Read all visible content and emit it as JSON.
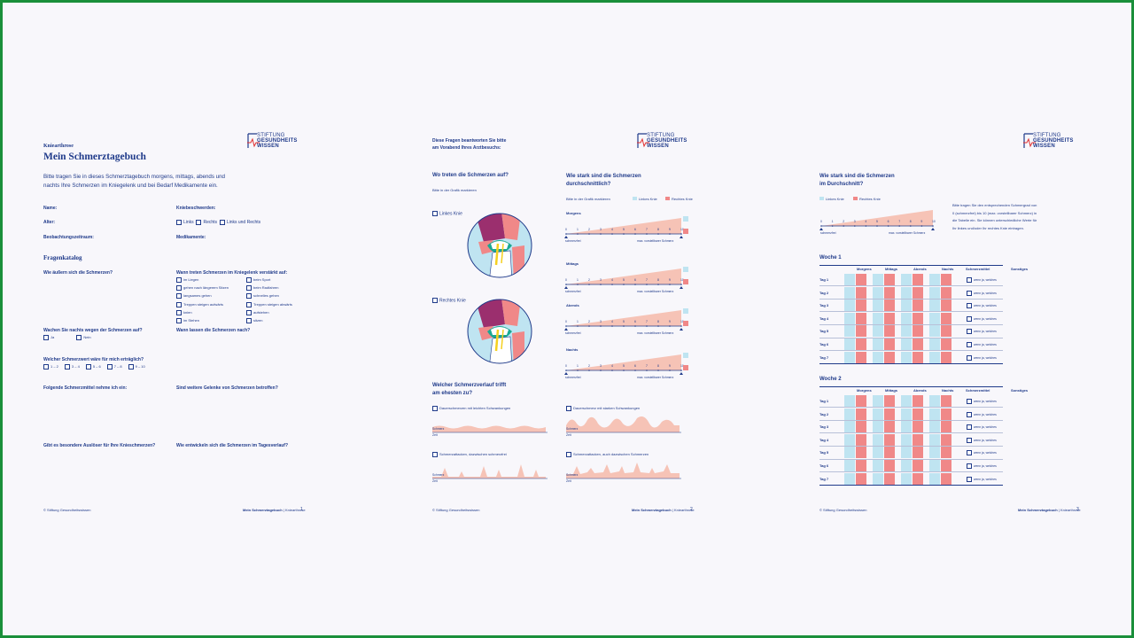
{
  "page1": {
    "subtitle": "Kniearthrose",
    "title": "Mein Schmerztagebuch",
    "intro1": "Bitte tragen Sie in dieses Schmerztagebuch morgens, mittags, abends und",
    "intro2": "nachts Ihre Schmerzen im Kniegelenk und bei Bedarf Medikamente ein.",
    "name_label": "Name:",
    "age_label": "Alter:",
    "period_label": "Beobachtungszeitraum:",
    "knee_complaints_label": "Kniebeschwerden:",
    "knee_options": [
      "Links",
      "Rechts",
      "Links und Rechts"
    ],
    "meds_label": "Medikamente:",
    "section_title": "Fragenkatalog",
    "q1": "Wie äußern sich die Schmerzen?",
    "q2": "Wann treten Schmerzen im Kniegelenk verstärkt auf:",
    "q2_options_left": [
      "im Liegen",
      "gehen nach längerem Sitzen",
      "langsames gehen",
      "Treppen steigen aufwärts",
      "knien",
      "im Stehen"
    ],
    "q2_options_right": [
      "beim Sport",
      "beim Radfahren",
      "schnelles gehen",
      "Treppen steigen abwärts",
      "aufstehen",
      "sitzen"
    ],
    "q3": "Wachen Sie nachts wegen der Schmerzen auf?",
    "q3_options": [
      "Ja",
      "Nein"
    ],
    "q4": "Wann lassen die Schmerzen nach?",
    "q5": "Welcher Schmerzwert wäre für mich erträglich?",
    "q5_options": [
      "1 – 2",
      "3 – 4",
      "5 – 6",
      "7 – 8",
      "9 – 10"
    ],
    "q6": "Folgende Schmerzmittel nehme ich ein:",
    "q7": "Sind weitere Gelenke von Schmerzen betroffen?",
    "q8": "Gibt es besondere Auslöser für Ihre Knieschmerzen?",
    "q9": "Wie entwickeln sich die Schmerzen im Tagesverlauf?",
    "footer_left": "© Stiftung Gesundheitswissen",
    "footer_title": "Mein Schmerztagebuch",
    "footer_sub": "Kniearthrose",
    "page_num": "1"
  },
  "logo": {
    "line1": "STIFTUNG",
    "line2": "GESUNDHEITS",
    "line3": "WISSEN"
  },
  "page2": {
    "header1": "Diese Fragen beantworten Sie bitte",
    "header2": "am Vorabend Ihres Arztbesuchs:",
    "where_title": "Wo treten die Schmerzen auf?",
    "where_sub": "Bitte in der Grafik markieren",
    "left_knee": "Linkes Knie",
    "right_knee": "Rechtes Knie",
    "avg_title1": "Wie stark sind die Schmerzen",
    "avg_title2": "durchschnittlich?",
    "avg_sub": "Bitte in der Grafik markieren",
    "legend_left": "Linkes Knie",
    "legend_right": "Rechtes Knie",
    "times": [
      "Morgens",
      "Mittags",
      "Abends",
      "Nachts"
    ],
    "scale": [
      "0",
      "1",
      "2",
      "3",
      "4",
      "5",
      "6",
      "7",
      "8",
      "9",
      "10"
    ],
    "scale_min": "schmerzfrei",
    "scale_max": "max. vorstellbarer Schmerz",
    "course_title1": "Welcher Schmerzverlauf trifft",
    "course_title2": "am ehesten zu?",
    "course_opts": [
      "Dauerschmerzen mit leichten Schwankungen",
      "Dauerschmerz mit starken Schwankungen",
      "Schmerzattacken, dazwischen schmerzfrei",
      "Schmerzattacken, auch dazwischen Schmerzen"
    ],
    "axis_y": "Schmerz",
    "axis_x": "Zeit",
    "footer_left": "© Stiftung Gesundheitswissen",
    "footer_title": "Mein Schmerztagebuch",
    "footer_sub": "Kniearthrose",
    "page_num": "2"
  },
  "page3": {
    "title1": "Wie stark sind die Schmerzen",
    "title2": "im Durchschnitt?",
    "legend_left": "Linkes Knie",
    "legend_right": "Rechtes Knie",
    "desc1": "Bitte tragen Sie den entsprechenden Schmergrad von",
    "desc2": "0 (schmerzfrei) bis 10 (max. vorstellbarer Schmerz) in",
    "desc3": "die Tabelle ein. Sie können unterschiedliche Werte für",
    "desc4": "Ihr linkes und/oder Ihr rechtes Knie eintragen.",
    "week1": "Woche 1",
    "week2": "Woche 2",
    "columns": [
      "Morgens",
      "Mittags",
      "Abends",
      "Nachts",
      "Schmerzmittel",
      "Sonstiges"
    ],
    "days": [
      "Tag 1",
      "Tag 2",
      "Tag 3",
      "Tag 4",
      "Tag 5",
      "Tag 6",
      "Tag 7"
    ],
    "med_option": "wenn ja, welches",
    "footer_left": "© Stiftung Gesundheitswissen",
    "footer_title": "Mein Schmerztagebuch",
    "footer_sub": "Kniearthrose",
    "page_num": "3"
  },
  "colors": {
    "navy": "#1f3a8a",
    "pain_red": "#f08888",
    "knee_blue": "#bfe4f1",
    "fill_pink": "#f6c3b6",
    "frame_green": "#1a8f3a"
  }
}
